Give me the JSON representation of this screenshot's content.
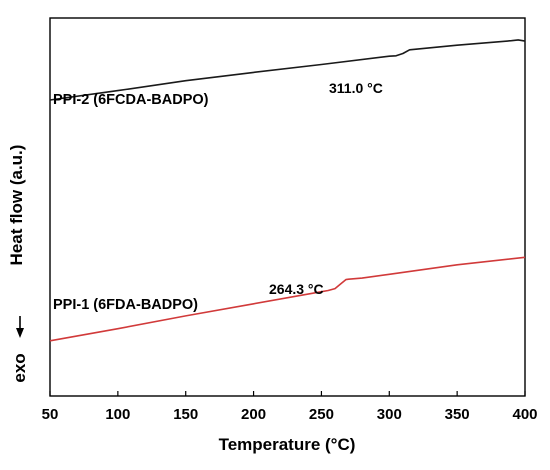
{
  "chart_data": {
    "type": "line",
    "xlabel": "Temperature (°C)",
    "ylabel": "Heat flow (a.u.)",
    "exo_label": "exo",
    "xlim": [
      50,
      400
    ],
    "ylim": [
      0,
      100
    ],
    "xticks": [
      50,
      100,
      150,
      200,
      250,
      300,
      350,
      400
    ],
    "grid": false,
    "y_tick_labels_shown": false,
    "series": [
      {
        "name": "PPI-2 (6FCDA-BADPO)",
        "color": "#1a1a1a",
        "x": [
          50,
          100,
          150,
          200,
          250,
          300,
          305,
          310,
          315,
          350,
          390,
          395,
          400
        ],
        "y": [
          78.3,
          80.8,
          83.4,
          85.6,
          87.7,
          89.9,
          90.0,
          90.6,
          91.6,
          92.8,
          94.0,
          94.2,
          93.9
        ]
      },
      {
        "name": "PPI-1 (6FDA-BADPO)",
        "color": "#d13a3a",
        "x": [
          50,
          100,
          150,
          200,
          250,
          255,
          260,
          264,
          268,
          270,
          280,
          300,
          350,
          400
        ],
        "y": [
          14.6,
          17.8,
          21.2,
          24.4,
          27.6,
          27.9,
          28.4,
          29.6,
          30.8,
          30.9,
          31.2,
          32.2,
          34.7,
          36.7
        ]
      }
    ],
    "annotations": [
      {
        "text": "311.0 °C",
        "x": 311.0
      },
      {
        "text": "264.3 °C",
        "x": 264.3
      }
    ]
  }
}
